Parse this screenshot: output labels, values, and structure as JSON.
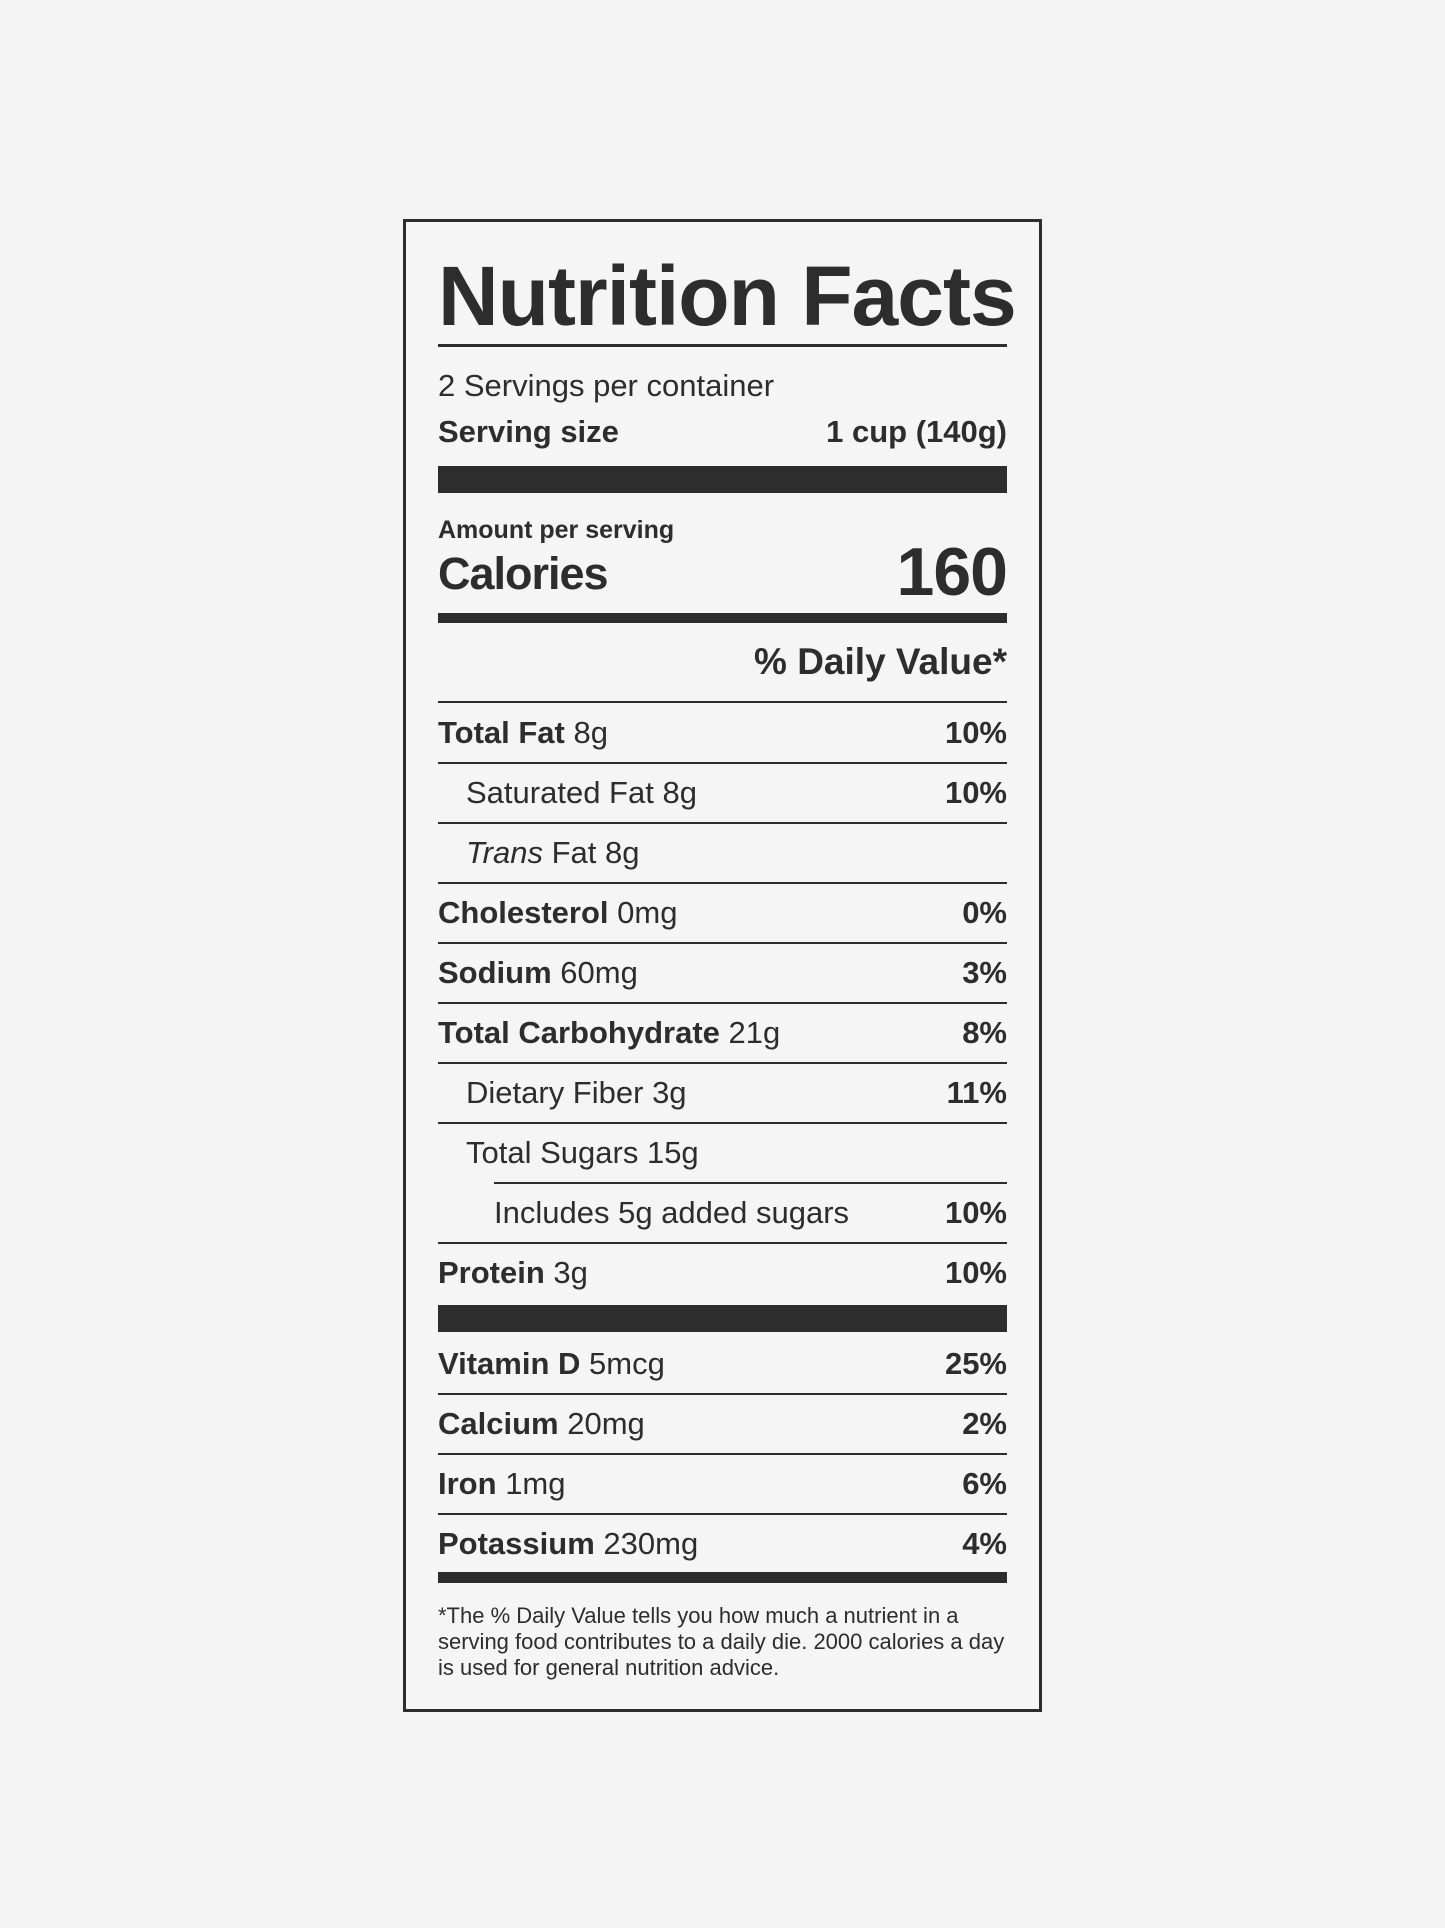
{
  "title": "Nutrition Facts",
  "servings_per_container": "2 Servings per container",
  "serving_size": {
    "label": "Serving size",
    "value": "1 cup (140g)"
  },
  "amount_per_serving": "Amount per serving",
  "calories": {
    "label": "Calories",
    "value": "160"
  },
  "daily_value_header": "% Daily Value*",
  "nutrients": [
    {
      "name": "Total Fat",
      "amount": "8g",
      "dv": "10%",
      "bold": true,
      "indent": 0
    },
    {
      "name": "Saturated Fat",
      "amount": "8g",
      "dv": "10%",
      "bold": false,
      "indent": 1
    },
    {
      "name": "Trans",
      "name_suffix": "Fat",
      "amount": "8g",
      "dv": "",
      "bold": false,
      "indent": 1,
      "italic": true
    },
    {
      "name": "Cholesterol",
      "amount": "0mg",
      "dv": "0%",
      "bold": true,
      "indent": 0
    },
    {
      "name": "Sodium",
      "amount": "60mg",
      "dv": "3%",
      "bold": true,
      "indent": 0
    },
    {
      "name": "Total Carbohydrate",
      "amount": "21g",
      "dv": "8%",
      "bold": true,
      "indent": 0
    },
    {
      "name": "Dietary Fiber",
      "amount": "3g",
      "dv": "11%",
      "bold": false,
      "indent": 1
    },
    {
      "name": "Total Sugars",
      "amount": "15g",
      "dv": "",
      "bold": false,
      "indent": 1
    },
    {
      "name": "Includes 5g added sugars",
      "amount": "",
      "dv": "10%",
      "bold": false,
      "indent": 2
    },
    {
      "name": "Protein",
      "amount": "3g",
      "dv": "10%",
      "bold": true,
      "indent": 0
    }
  ],
  "vitamins": [
    {
      "name": "Vitamin D",
      "amount": "5mcg",
      "dv": "25%"
    },
    {
      "name": "Calcium",
      "amount": "20mg",
      "dv": "2%"
    },
    {
      "name": "Iron",
      "amount": "1mg",
      "dv": "6%"
    },
    {
      "name": "Potassium",
      "amount": "230mg",
      "dv": "4%"
    }
  ],
  "footnote": "*The % Daily Value tells you how much a nutrient in a serving food contributes to a daily die. 2000 calories a day is used for general nutrition advice.",
  "colors": {
    "ink": "#2d2d2d",
    "background": "#f3f3f3"
  }
}
